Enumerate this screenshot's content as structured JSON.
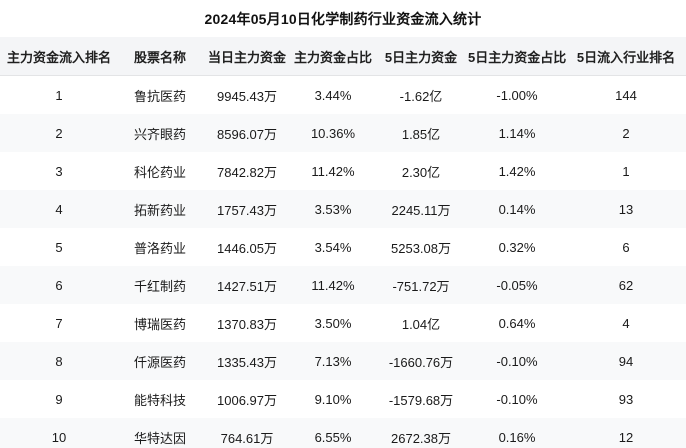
{
  "title": "2024年05月10日化学制药行业资金流入统计",
  "colors": {
    "header_bg": "#f4f5f7",
    "stripe_bg": "#f8f9fa",
    "header_border": "#e3e4e6",
    "text": "#1a1a1a",
    "background": "#ffffff"
  },
  "columns": [
    "主力资金流入排名",
    "股票名称",
    "当日主力资金",
    "主力资金占比",
    "5日主力资金",
    "5日主力资金占比",
    "5日流入行业排名"
  ],
  "rows": [
    [
      "1",
      "鲁抗医药",
      "9945.43万",
      "3.44%",
      "-1.62亿",
      "-1.00%",
      "144"
    ],
    [
      "2",
      "兴齐眼药",
      "8596.07万",
      "10.36%",
      "1.85亿",
      "1.14%",
      "2"
    ],
    [
      "3",
      "科伦药业",
      "7842.82万",
      "11.42%",
      "2.30亿",
      "1.42%",
      "1"
    ],
    [
      "4",
      "拓新药业",
      "1757.43万",
      "3.53%",
      "2245.11万",
      "0.14%",
      "13"
    ],
    [
      "5",
      "普洛药业",
      "1446.05万",
      "3.54%",
      "5253.08万",
      "0.32%",
      "6"
    ],
    [
      "6",
      "千红制药",
      "1427.51万",
      "11.42%",
      "-751.72万",
      "-0.05%",
      "62"
    ],
    [
      "7",
      "博瑞医药",
      "1370.83万",
      "3.50%",
      "1.04亿",
      "0.64%",
      "4"
    ],
    [
      "8",
      "仟源医药",
      "1335.43万",
      "7.13%",
      "-1660.76万",
      "-0.10%",
      "94"
    ],
    [
      "9",
      "能特科技",
      "1006.97万",
      "9.10%",
      "-1579.68万",
      "-0.10%",
      "93"
    ],
    [
      "10",
      "华特达因",
      "764.61万",
      "6.55%",
      "2672.38万",
      "0.16%",
      "12"
    ]
  ],
  "chart_data": {
    "type": "table",
    "title": "2024年05月10日化学制药行业资金流入统计",
    "columns": [
      "主力资金流入排名",
      "股票名称",
      "当日主力资金",
      "主力资金占比",
      "5日主力资金",
      "5日主力资金占比",
      "5日流入行业排名"
    ],
    "rows": [
      [
        "1",
        "鲁抗医药",
        "9945.43万",
        "3.44%",
        "-1.62亿",
        "-1.00%",
        "144"
      ],
      [
        "2",
        "兴齐眼药",
        "8596.07万",
        "10.36%",
        "1.85亿",
        "1.14%",
        "2"
      ],
      [
        "3",
        "科伦药业",
        "7842.82万",
        "11.42%",
        "2.30亿",
        "1.42%",
        "1"
      ],
      [
        "4",
        "拓新药业",
        "1757.43万",
        "3.53%",
        "2245.11万",
        "0.14%",
        "13"
      ],
      [
        "5",
        "普洛药业",
        "1446.05万",
        "3.54%",
        "5253.08万",
        "0.32%",
        "6"
      ],
      [
        "6",
        "千红制药",
        "1427.51万",
        "11.42%",
        "-751.72万",
        "-0.05%",
        "62"
      ],
      [
        "7",
        "博瑞医药",
        "1370.83万",
        "3.50%",
        "1.04亿",
        "0.64%",
        "4"
      ],
      [
        "8",
        "仟源医药",
        "1335.43万",
        "7.13%",
        "-1660.76万",
        "-0.10%",
        "94"
      ],
      [
        "9",
        "能特科技",
        "1006.97万",
        "9.10%",
        "-1579.68万",
        "-0.10%",
        "93"
      ],
      [
        "10",
        "华特达因",
        "764.61万",
        "6.55%",
        "2672.38万",
        "0.16%",
        "12"
      ]
    ],
    "layout": {
      "striped_rows": true,
      "stripe_pattern": "even-rows-shaded",
      "alignment": "center",
      "gridlines": "none",
      "header_divider": true
    }
  }
}
